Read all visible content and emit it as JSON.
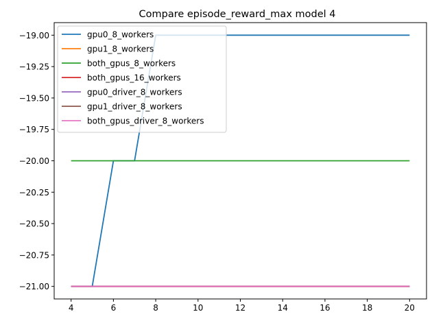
{
  "chart_data": {
    "type": "line",
    "title": "Compare episode_reward_max model 4",
    "xlabel": "",
    "ylabel": "",
    "xlim": [
      3.2,
      20.8
    ],
    "ylim": [
      -21.1,
      -18.9
    ],
    "x_ticks": [
      4,
      6,
      8,
      10,
      12,
      14,
      16,
      18,
      20
    ],
    "x_tick_labels": [
      "4",
      "6",
      "8",
      "10",
      "12",
      "14",
      "16",
      "18",
      "20"
    ],
    "y_ticks": [
      -19.0,
      -19.25,
      -19.5,
      -19.75,
      -20.0,
      -20.25,
      -20.5,
      -20.75,
      -21.0
    ],
    "y_tick_labels": [
      "−19.00",
      "−19.25",
      "−19.50",
      "−19.75",
      "−20.00",
      "−20.25",
      "−20.50",
      "−20.75",
      "−21.00"
    ],
    "grid": false,
    "legend_position": "top-left",
    "x": [
      4,
      5,
      6,
      7,
      8,
      9,
      10,
      11,
      12,
      13,
      14,
      15,
      16,
      17,
      18,
      19,
      20
    ],
    "series": [
      {
        "name": "gpu0_8_workers",
        "color": "#1f77b4",
        "values": [
          -21,
          -21,
          -20,
          -20,
          -19,
          -19,
          -19,
          -19,
          -19,
          -19,
          -19,
          -19,
          -19,
          -19,
          -19,
          -19,
          -19
        ]
      },
      {
        "name": "gpu1_8_workers",
        "color": "#ff7f0e",
        "values": [
          -21,
          -21,
          -21,
          -21,
          -21,
          -21,
          -21,
          -21,
          -21,
          -21,
          -21,
          -21,
          -21,
          -21,
          -21,
          -21,
          -21
        ]
      },
      {
        "name": "both_gpus_8_workers",
        "color": "#2ca02c",
        "values": [
          -20,
          -20,
          -20,
          -20,
          -20,
          -20,
          -20,
          -20,
          -20,
          -20,
          -20,
          -20,
          -20,
          -20,
          -20,
          -20,
          -20
        ]
      },
      {
        "name": "both_gpus_16_workers",
        "color": "#d62728",
        "values": [
          -21,
          -21,
          -21,
          -21,
          -21,
          -21,
          -21,
          -21,
          -21,
          -21,
          -21,
          -21,
          -21,
          -21,
          -21,
          -21,
          -21
        ]
      },
      {
        "name": "gpu0_driver_8_workers",
        "color": "#9467bd",
        "values": [
          -21,
          -21,
          -21,
          -21,
          -21,
          -21,
          -21,
          -21,
          -21,
          -21,
          -21,
          -21,
          -21,
          -21,
          -21,
          -21,
          -21
        ]
      },
      {
        "name": "gpu1_driver_8_workers",
        "color": "#8c564b",
        "values": [
          -21,
          -21,
          -21,
          -21,
          -21,
          -21,
          -21,
          -21,
          -21,
          -21,
          -21,
          -21,
          -21,
          -21,
          -21,
          -21,
          -21
        ]
      },
      {
        "name": "both_gpus_driver_8_workers",
        "color": "#e377c2",
        "values": [
          -21,
          -21,
          -21,
          -21,
          -21,
          -21,
          -21,
          -21,
          -21,
          -21,
          -21,
          -21,
          -21,
          -21,
          -21,
          -21,
          -21
        ]
      }
    ]
  }
}
